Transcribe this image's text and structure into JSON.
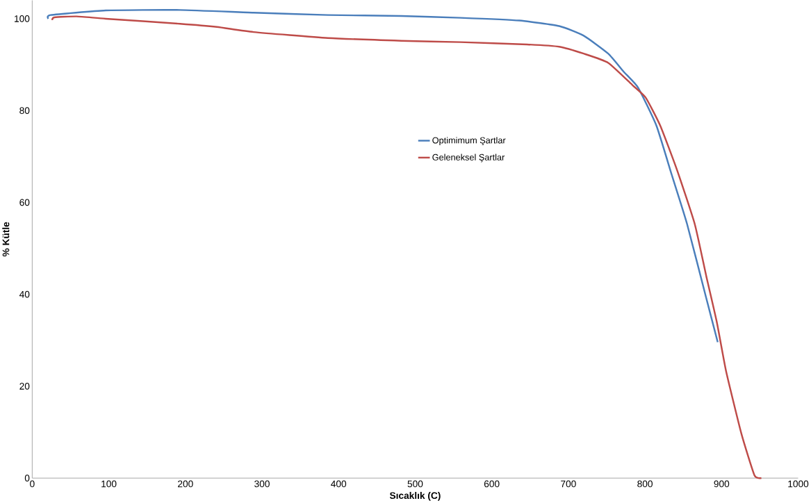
{
  "chart_data": {
    "type": "line",
    "xlabel": "Sıcaklık (C)",
    "ylabel": "% Kütle",
    "xlim": [
      0,
      1000
    ],
    "ylim": [
      0,
      104
    ],
    "xticks": [
      0,
      100,
      200,
      300,
      400,
      500,
      600,
      700,
      800,
      900,
      1000
    ],
    "yticks": [
      0,
      20,
      40,
      60,
      80,
      100
    ],
    "grid": false,
    "legend": "right",
    "marker": "none",
    "line_style": "solid",
    "series": [
      {
        "name": "Optimimum Şartlar",
        "color": "#4a7ebb",
        "x": [
          21,
          24,
          96,
          193,
          289,
          386,
          482,
          559,
          636,
          688,
          720,
          752,
          772,
          791,
          815,
          835,
          855,
          880,
          895
        ],
        "values": [
          100,
          100.8,
          101.8,
          101.9,
          101.3,
          100.8,
          100.6,
          100.2,
          99.6,
          98.4,
          96.3,
          92.4,
          88.5,
          85,
          76.7,
          66,
          55.3,
          39.2,
          29.6
        ]
      },
      {
        "name": "Geleneksel Şartlar",
        "color": "#be4b48",
        "x": [
          26,
          29,
          58,
          96,
          193,
          241,
          289,
          386,
          482,
          559,
          646,
          688,
          720,
          752,
          784,
          801,
          820,
          842,
          865,
          880,
          894,
          906,
          926,
          943,
          952
        ],
        "values": [
          99.7,
          100.3,
          100.5,
          100,
          98.9,
          98.2,
          97.1,
          95.8,
          95.2,
          94.9,
          94.4,
          93.9,
          92.4,
          90.4,
          85.5,
          82.8,
          76.7,
          67,
          55.3,
          44,
          33.8,
          23.2,
          9.6,
          0.6,
          0
        ]
      }
    ]
  }
}
